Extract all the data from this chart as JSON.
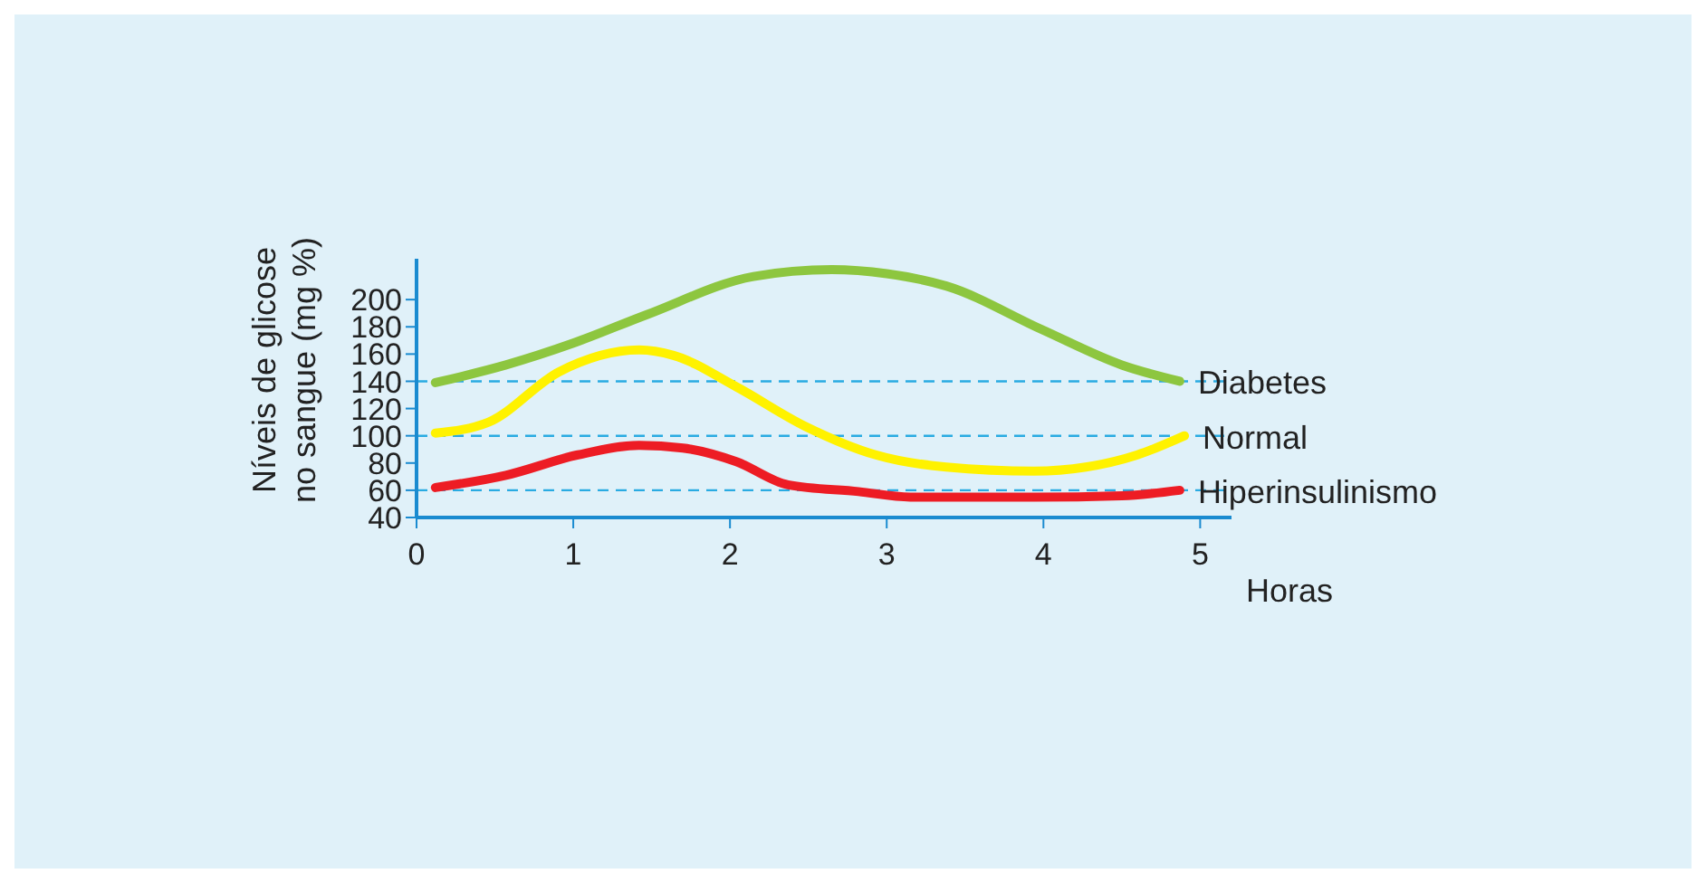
{
  "chart_data": {
    "type": "line",
    "xlabel": "Horas",
    "ylabel": "Níveis de glicose\nno sangue (mg %)",
    "xlim": [
      0,
      5.2
    ],
    "xticks": [
      0,
      1,
      2,
      3,
      4,
      5
    ],
    "ylim": [
      40,
      230
    ],
    "yticks": [
      40,
      60,
      80,
      100,
      120,
      140,
      160,
      180,
      200
    ],
    "marker": "none",
    "line_style": "solid",
    "ref_lines": [
      {
        "axis": "y",
        "value": 140,
        "color": "#29abe2",
        "line_style": "dashed"
      },
      {
        "axis": "y",
        "value": 100,
        "color": "#29abe2",
        "line_style": "dashed"
      },
      {
        "axis": "y",
        "value": 60,
        "color": "#29abe2",
        "line_style": "dashed"
      }
    ],
    "series": [
      {
        "name": "Diabetes",
        "color": "#8dc63f",
        "x": [
          0.12,
          0.57,
          1.0,
          1.47,
          2.15,
          2.65,
          3.0,
          3.38,
          3.99,
          4.5,
          4.87
        ],
        "values": [
          139,
          152,
          168,
          189,
          217,
          222,
          219,
          210,
          178,
          152,
          140
        ]
      },
      {
        "name": "Normal",
        "color": "#fff200",
        "x": [
          0.12,
          0.46,
          0.91,
          1.42,
          1.64,
          2.04,
          2.48,
          2.93,
          3.38,
          3.94,
          4.27,
          4.6,
          4.9
        ],
        "values": [
          102,
          110,
          147,
          163,
          159,
          136,
          107,
          86,
          77,
          74,
          77,
          86,
          100
        ]
      },
      {
        "name": "Hiperinsulinismo",
        "color": "#ed1c24",
        "x": [
          0.12,
          0.57,
          1.03,
          1.42,
          1.7,
          2.04,
          2.37,
          2.82,
          3.15,
          3.94,
          4.5,
          4.87
        ],
        "values": [
          62,
          71,
          86,
          93,
          91,
          81,
          64,
          59,
          55,
          55,
          56,
          60
        ]
      }
    ]
  }
}
